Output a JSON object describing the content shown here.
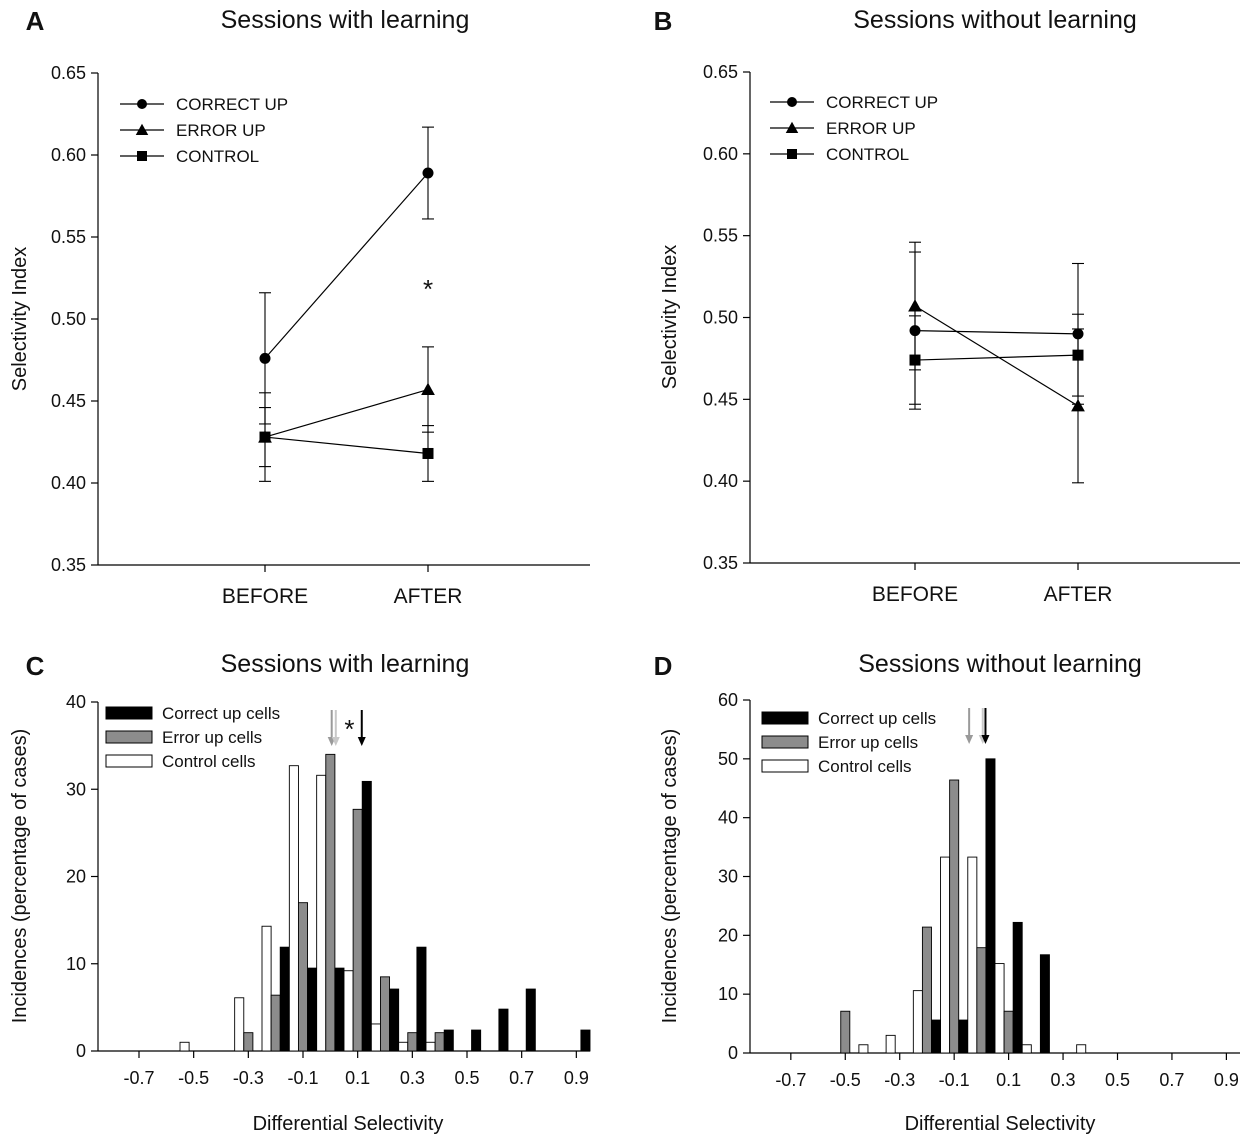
{
  "chart_data": [
    {
      "panel": "A",
      "type": "line",
      "title": "Sessions with learning",
      "xlabel": "",
      "ylabel": "Selectivity Index",
      "categories": [
        "BEFORE",
        "AFTER"
      ],
      "ylim": [
        0.35,
        0.65
      ],
      "yticks": [
        "0.35",
        "0.40",
        "0.45",
        "0.50",
        "0.55",
        "0.60",
        "0.65"
      ],
      "legend_position": "top-left",
      "series": [
        {
          "name": "CORRECT UP",
          "marker": "circle",
          "values": [
            0.476,
            0.589
          ],
          "err": [
            0.04,
            0.028
          ]
        },
        {
          "name": "ERROR UP",
          "marker": "triangle",
          "values": [
            0.428,
            0.457
          ],
          "err": [
            0.027,
            0.026
          ]
        },
        {
          "name": "CONTROL",
          "marker": "square",
          "values": [
            0.428,
            0.418
          ],
          "err": [
            0.018,
            0.017
          ]
        }
      ],
      "annotations": [
        {
          "text": "*",
          "category": "AFTER",
          "y": 0.52
        }
      ]
    },
    {
      "panel": "B",
      "type": "line",
      "title": "Sessions without learning",
      "xlabel": "",
      "ylabel": "Selectivity Index",
      "categories": [
        "BEFORE",
        "AFTER"
      ],
      "ylim": [
        0.35,
        0.65
      ],
      "yticks": [
        "0.35",
        "0.40",
        "0.45",
        "0.50",
        "0.55",
        "0.60",
        "0.65"
      ],
      "legend_position": "top-left",
      "series": [
        {
          "name": "CORRECT UP",
          "marker": "circle",
          "values": [
            0.492,
            0.49
          ],
          "err": [
            0.048,
            0.043
          ]
        },
        {
          "name": "ERROR UP",
          "marker": "triangle",
          "values": [
            0.507,
            0.446
          ],
          "err": [
            0.039,
            0.047
          ]
        },
        {
          "name": "CONTROL",
          "marker": "square",
          "values": [
            0.474,
            0.477
          ],
          "err": [
            0.027,
            0.025
          ]
        }
      ],
      "annotations": []
    },
    {
      "panel": "C",
      "type": "bar",
      "title": "Sessions with learning",
      "xlabel": "Differential Selectivity",
      "ylabel": "Incidences (percentage of cases)",
      "xlim": [
        -0.85,
        0.95
      ],
      "ylim": [
        0,
        40
      ],
      "xticks": [
        "-0.7",
        "-0.5",
        "-0.3",
        "-0.1",
        "0.1",
        "0.3",
        "0.5",
        "0.7",
        "0.9"
      ],
      "yticks": [
        "0",
        "10",
        "20",
        "30",
        "40"
      ],
      "bin_width": 0.1,
      "x": [
        -0.5,
        -0.3,
        -0.2,
        -0.1,
        0.0,
        0.1,
        0.2,
        0.3,
        0.4,
        0.5,
        0.6,
        0.7,
        0.9
      ],
      "legend_position": "top-left",
      "series": [
        {
          "name": "Correct up cells",
          "color": "#000000",
          "values": [
            0,
            0,
            11.9,
            9.5,
            9.5,
            30.9,
            7.1,
            11.9,
            2.4,
            2.4,
            4.8,
            7.1,
            2.4
          ]
        },
        {
          "name": "Error up cells",
          "color": "#8c8c8c",
          "values": [
            0,
            2.1,
            6.4,
            17.0,
            34.0,
            27.7,
            8.5,
            2.1,
            2.1,
            0,
            0,
            0,
            0
          ]
        },
        {
          "name": "Control cells",
          "color": "#ffffff",
          "values": [
            1.0,
            6.1,
            14.3,
            32.7,
            31.6,
            9.2,
            3.1,
            1.0,
            1.0,
            0,
            0,
            0,
            0
          ]
        }
      ],
      "arrows": [
        {
          "x": 0.005,
          "color": "#9a9a9a"
        },
        {
          "x": 0.02,
          "color": "#c8c8c8"
        },
        {
          "x": 0.115,
          "color": "#000000"
        }
      ],
      "annotations": [
        {
          "text": "*",
          "x": 0.07
        }
      ]
    },
    {
      "panel": "D",
      "type": "bar",
      "title": "Sessions without learning",
      "xlabel": "Differential Selectivity",
      "ylabel": "Incidences (percentage of cases)",
      "xlim": [
        -0.85,
        0.95
      ],
      "ylim": [
        0,
        60
      ],
      "xticks": [
        "-0.7",
        "-0.5",
        "-0.3",
        "-0.1",
        "0.1",
        "0.3",
        "0.5",
        "0.7",
        "0.9"
      ],
      "yticks": [
        "0",
        "10",
        "20",
        "30",
        "40",
        "50",
        "60"
      ],
      "bin_width": 0.1,
      "x": [
        -0.5,
        -0.4,
        -0.3,
        -0.2,
        -0.1,
        0.0,
        0.1,
        0.2,
        0.4
      ],
      "legend_position": "top-left",
      "series": [
        {
          "name": "Correct up cells",
          "color": "#000000",
          "values": [
            0,
            0,
            0,
            5.6,
            5.6,
            50.0,
            22.2,
            16.7,
            0
          ]
        },
        {
          "name": "Error up cells",
          "color": "#8c8c8c",
          "values": [
            7.1,
            0,
            0,
            21.4,
            46.4,
            17.9,
            7.1,
            0,
            0
          ]
        },
        {
          "name": "Control cells",
          "color": "#ffffff",
          "values": [
            0,
            1.4,
            3.0,
            10.6,
            33.3,
            33.3,
            15.2,
            1.4,
            1.4
          ]
        }
      ],
      "arrows": [
        {
          "x": -0.045,
          "color": "#9a9a9a"
        },
        {
          "x": 0.005,
          "color": "#c8c8c8"
        },
        {
          "x": 0.015,
          "color": "#000000"
        }
      ],
      "annotations": []
    }
  ]
}
